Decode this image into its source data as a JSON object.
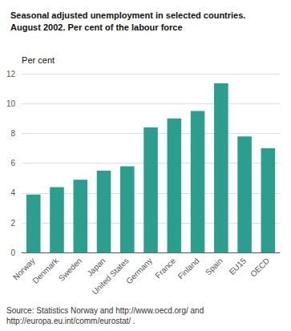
{
  "chart_data": {
    "type": "bar",
    "title": "Seasonal adjusted unemployment in selected countries.\nAugust 2002. Per cent of the labour force",
    "ylabel": "Per cent",
    "categories": [
      "Norway",
      "Denmark",
      "Sweden",
      "Japan",
      "United States",
      "Germany",
      "France",
      "Finland",
      "Spain",
      "EU15",
      "OECD"
    ],
    "values": [
      3.9,
      4.4,
      4.9,
      5.5,
      5.8,
      8.4,
      9.0,
      9.5,
      11.35,
      7.8,
      7.0
    ],
    "color": "#2B9E8E",
    "ylim": [
      0,
      12
    ],
    "yticks": [
      0,
      2,
      4,
      6,
      8,
      10,
      12
    ],
    "grid": true,
    "annotations": [
      "Source: Statistics Norway and http://www.oecd.org/ and\nhttp://europa.eu.int/comm/eurostat/ ."
    ]
  }
}
